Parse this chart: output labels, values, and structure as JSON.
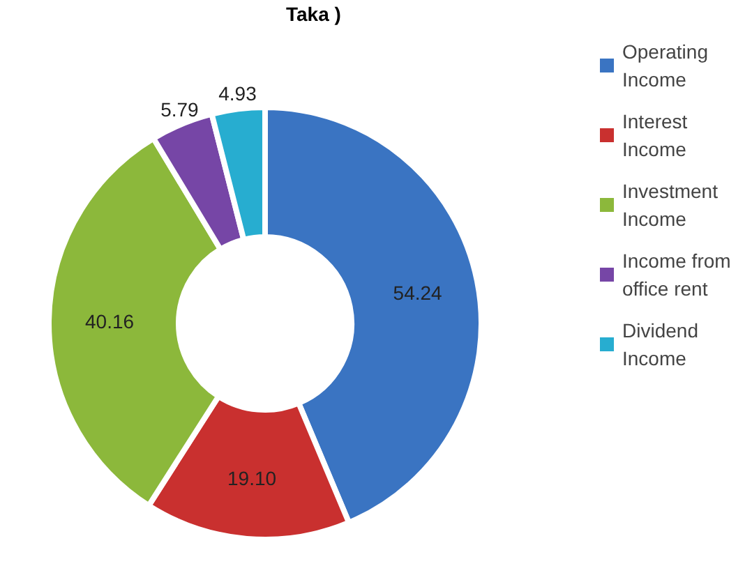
{
  "chart_data": {
    "type": "donut",
    "title": "Taka )",
    "categories": [
      "Operating Income",
      "Interest Income",
      "Investment Income",
      "Income from office rent",
      "Dividend Income"
    ],
    "values": [
      54.24,
      19.1,
      40.16,
      5.79,
      4.93
    ],
    "value_labels": [
      "54.24",
      "19.10",
      "40.16",
      "5.79",
      "4.93"
    ],
    "colors": [
      "#3a74c2",
      "#c9302f",
      "#8cb83b",
      "#7646a6",
      "#27add0"
    ],
    "legend": "right"
  }
}
